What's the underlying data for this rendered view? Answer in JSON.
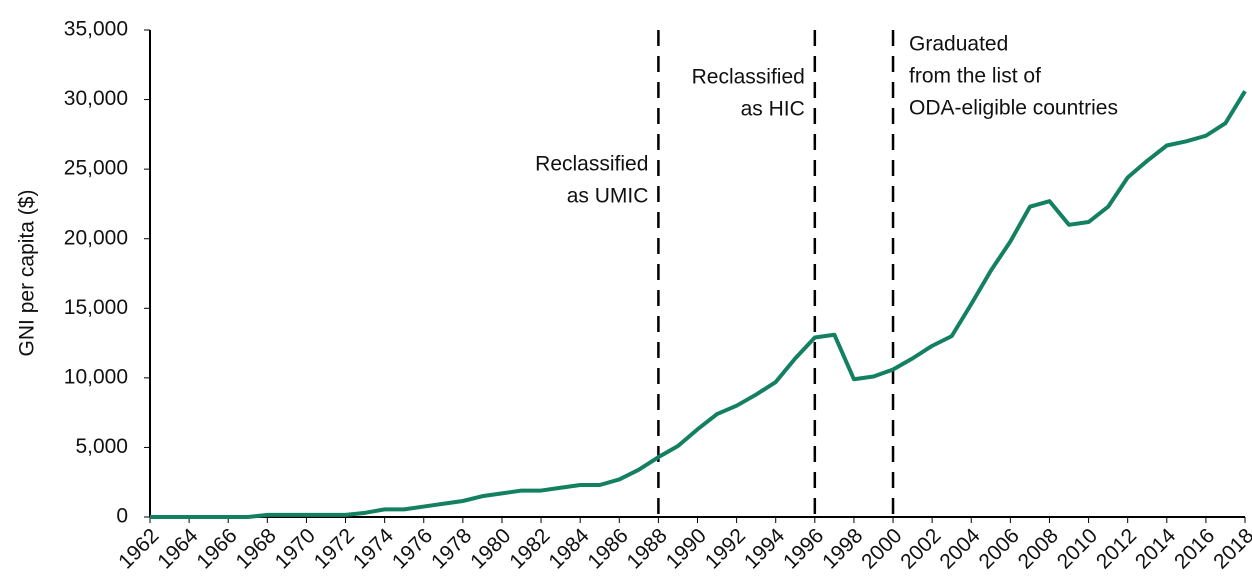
{
  "chart_data": {
    "type": "line",
    "ylabel": "GNI per capita ($)",
    "x": [
      1962,
      1963,
      1964,
      1965,
      1966,
      1967,
      1968,
      1969,
      1970,
      1971,
      1972,
      1973,
      1974,
      1975,
      1976,
      1977,
      1978,
      1979,
      1980,
      1981,
      1982,
      1983,
      1984,
      1985,
      1986,
      1987,
      1988,
      1989,
      1990,
      1991,
      1992,
      1993,
      1994,
      1995,
      1996,
      1997,
      1998,
      1999,
      2000,
      2001,
      2002,
      2003,
      2004,
      2005,
      2006,
      2007,
      2008,
      2009,
      2010,
      2011,
      2012,
      2013,
      2014,
      2015,
      2016,
      2017,
      2018
    ],
    "series": [
      {
        "color": "#138061",
        "values": [
          0,
          0,
          0,
          0,
          0,
          0,
          150,
          150,
          150,
          150,
          150,
          300,
          550,
          550,
          750,
          950,
          1150,
          1500,
          1700,
          1900,
          1900,
          2100,
          2300,
          2300,
          2700,
          3400,
          4300,
          5100,
          6300,
          7400,
          8000,
          8800,
          9700,
          11400,
          12900,
          13100,
          9900,
          10100,
          10600,
          11400,
          12300,
          13000,
          15300,
          17700,
          19800,
          22300,
          22700,
          21000,
          21200,
          22300,
          24400,
          25600,
          26700,
          27000,
          27400,
          28300,
          30600
        ]
      }
    ],
    "xlim": [
      1962,
      2018
    ],
    "xticks": [
      1962,
      1964,
      1966,
      1968,
      1970,
      1972,
      1974,
      1976,
      1978,
      1980,
      1982,
      1984,
      1986,
      1988,
      1990,
      1992,
      1994,
      1996,
      1998,
      2000,
      2002,
      2004,
      2006,
      2008,
      2010,
      2012,
      2014,
      2016,
      2018
    ],
    "ylim": [
      0,
      35000
    ],
    "yticks": [
      0,
      {
        "value": 5000,
        "label": "5,000"
      },
      {
        "value": 10000,
        "label": "10,000"
      },
      {
        "value": 15000,
        "label": "15,000"
      },
      {
        "value": 20000,
        "label": "20,000"
      },
      {
        "value": 25000,
        "label": "25,000"
      },
      {
        "value": 30000,
        "label": "30,000"
      },
      {
        "value": 35000,
        "label": "35,000"
      }
    ],
    "grid": false,
    "annotations": [
      {
        "x": 1988,
        "lines": [
          "Reclassified",
          "as UMIC"
        ]
      },
      {
        "x": 1996,
        "lines": [
          "Reclassified",
          "as HIC"
        ]
      },
      {
        "x": 2000,
        "lines": [
          "Graduated",
          "from the list of",
          "ODA-eligible countries"
        ]
      }
    ]
  }
}
